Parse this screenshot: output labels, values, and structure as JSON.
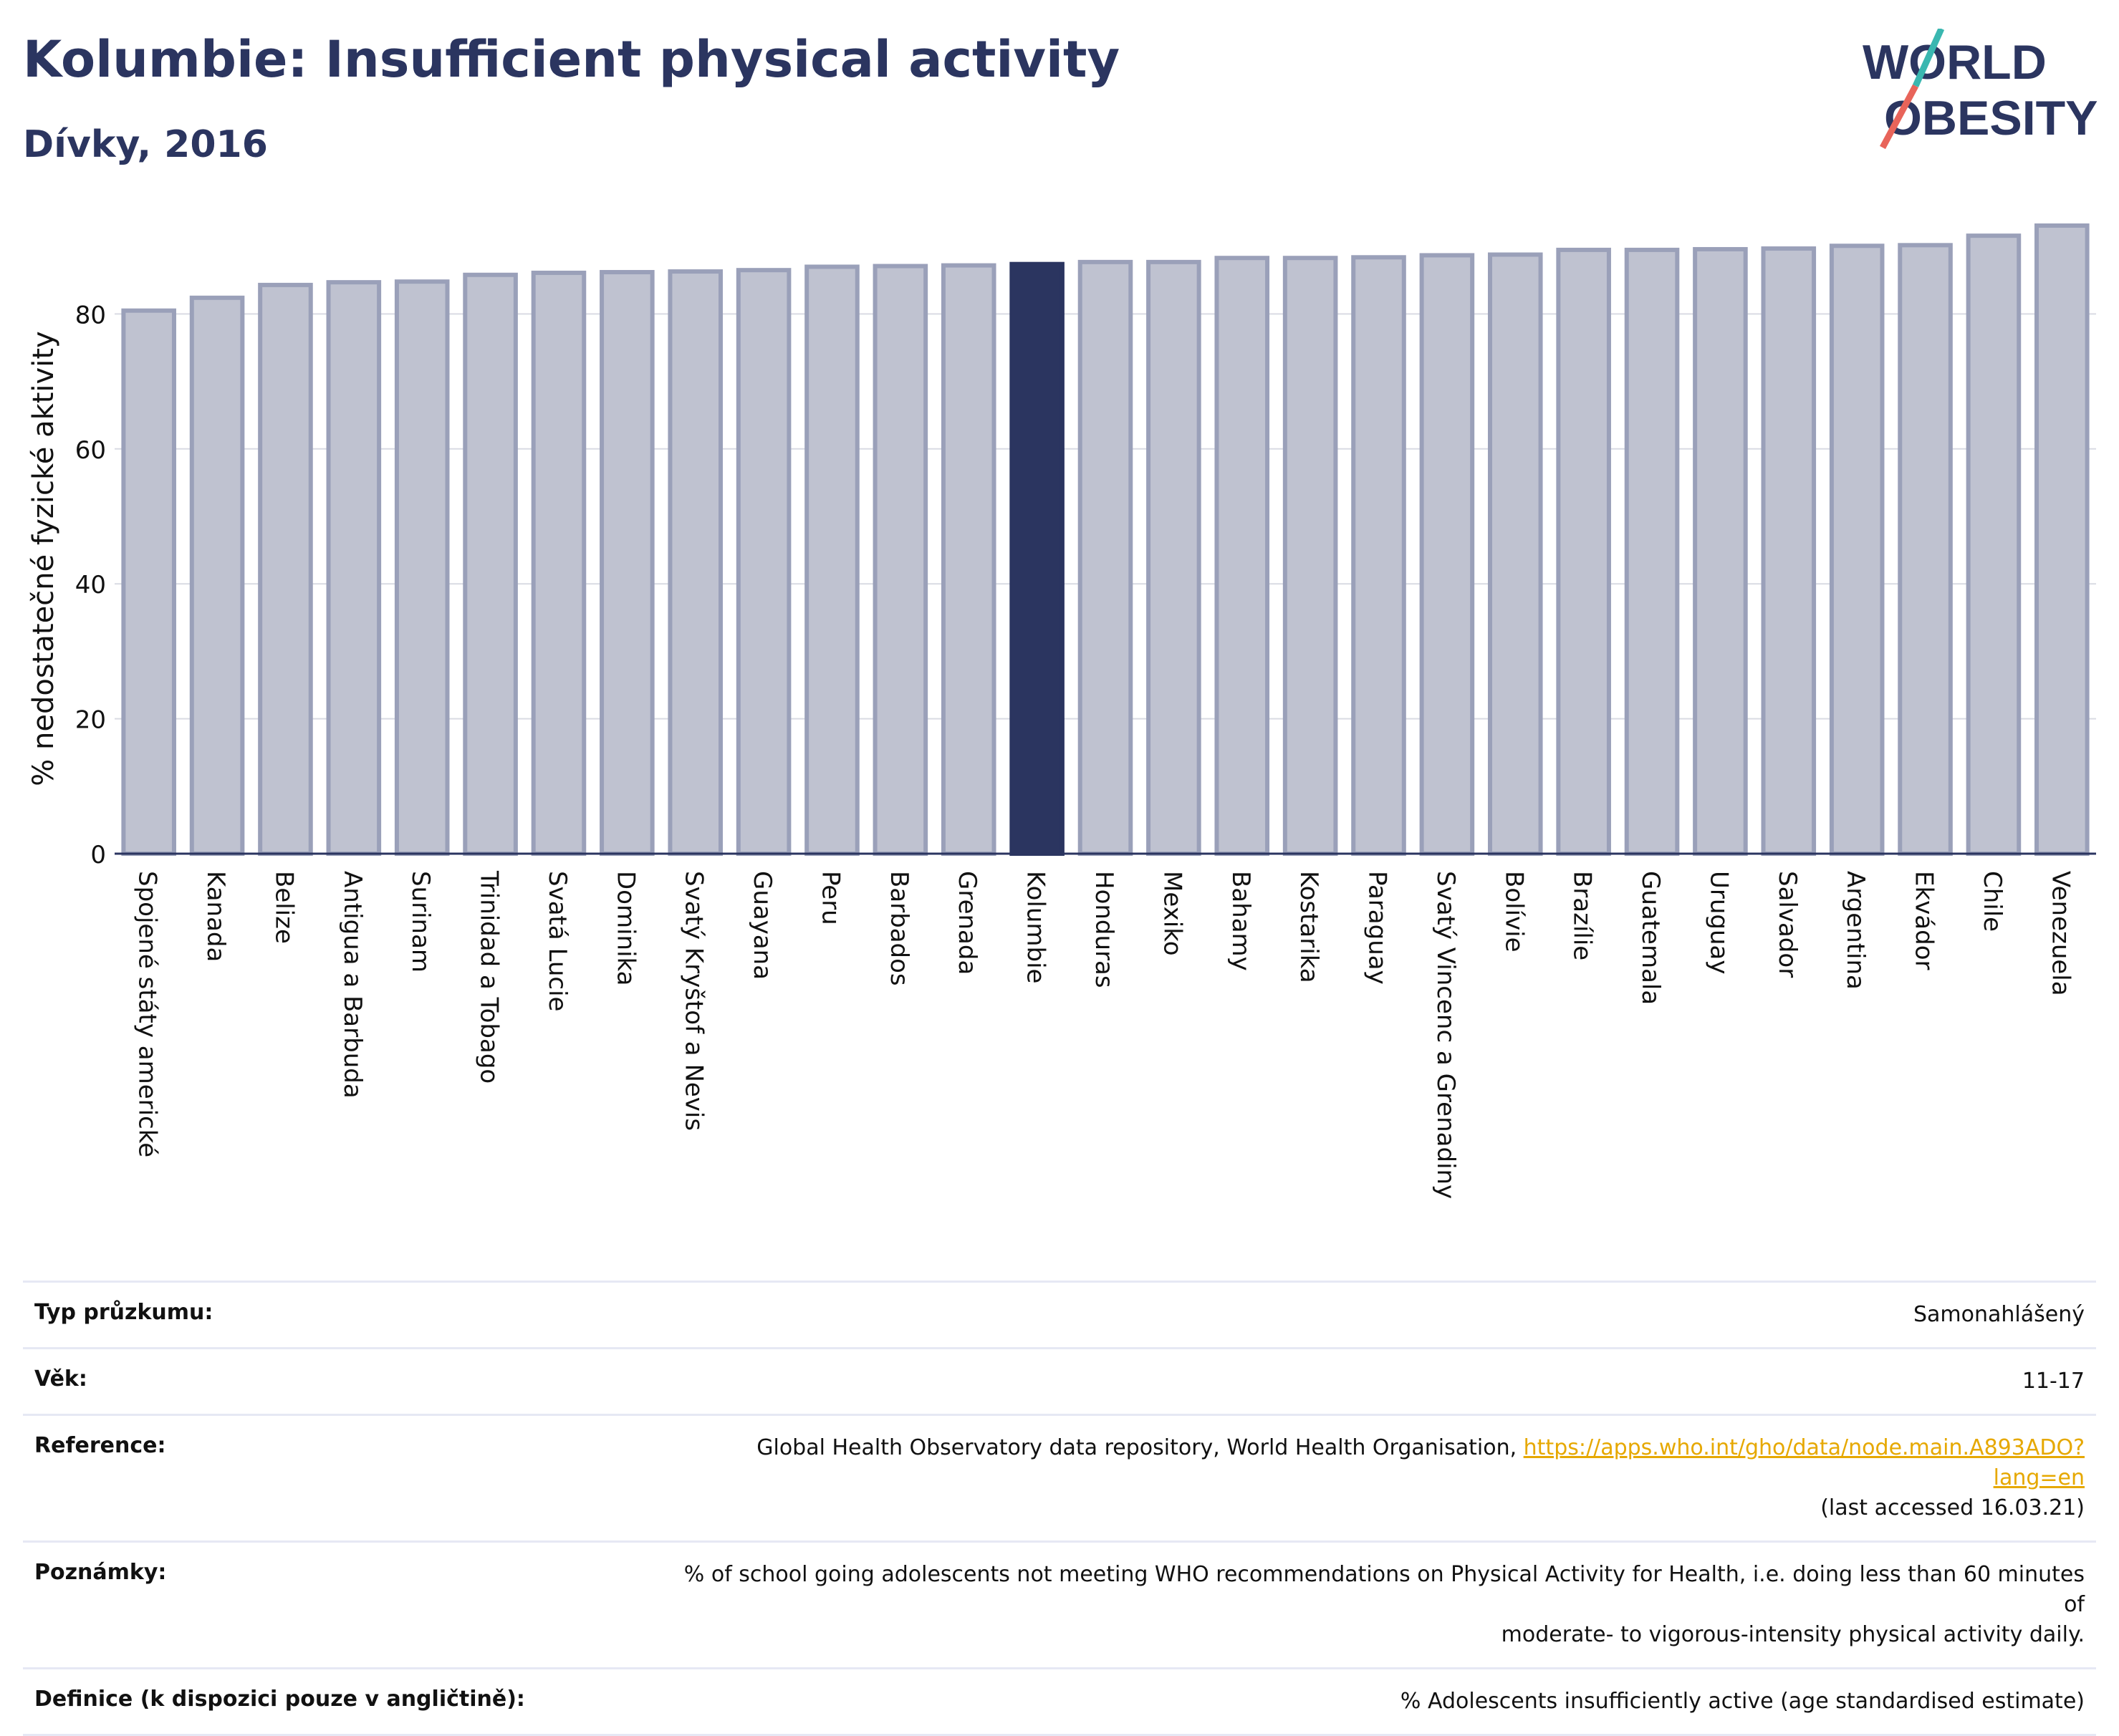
{
  "header": {
    "title": "Kolumbie: Insufficient physical activity",
    "subtitle": "Dívky, 2016",
    "logo_text": "WORLD OBESITY"
  },
  "colors": {
    "title": "#2b3560",
    "bar": "#bfc2d0",
    "bar_stroke": "#9aa0b9",
    "highlight": "#2b3560",
    "link": "#e6a800",
    "logo_teal": "#3ab7b0",
    "logo_red": "#e8645a"
  },
  "chart_data": {
    "type": "bar",
    "ylabel": "% nedostatečné fyzické aktivity",
    "xlabel": "",
    "ylim": [
      0,
      100
    ],
    "yticks": [
      0,
      20,
      40,
      60,
      80
    ],
    "grid": true,
    "highlight": "Kolumbie",
    "categories": [
      "Spojené státy americké",
      "Kanada",
      "Belize",
      "Antigua a Barbuda",
      "Surinam",
      "Trinidad a Tobago",
      "Svatá Lucie",
      "Dominika",
      "Svatý Kryštof a Nevis",
      "Guayana",
      "Peru",
      "Barbados",
      "Grenada",
      "Kolumbie",
      "Honduras",
      "Mexiko",
      "Bahamy",
      "Kostarika",
      "Paraguay",
      "Svatý Vincenc a Grenadiny",
      "Bolívie",
      "Brazílie",
      "Guatemala",
      "Uruguay",
      "Salvador",
      "Argentina",
      "Ekvádor",
      "Chile",
      "Venezuela"
    ],
    "values": [
      80.5,
      82.4,
      84.3,
      84.7,
      84.8,
      85.8,
      86.1,
      86.2,
      86.3,
      86.5,
      87.0,
      87.1,
      87.2,
      87.4,
      87.7,
      87.7,
      88.3,
      88.3,
      88.4,
      88.7,
      88.8,
      89.5,
      89.5,
      89.6,
      89.7,
      90.1,
      90.2,
      91.6,
      93.1
    ]
  },
  "meta": {
    "rows": [
      {
        "label": "Typ průzkumu:",
        "value": "Samonahlášený"
      },
      {
        "label": "Věk:",
        "value": "11-17"
      },
      {
        "label": "Reference:",
        "value": "Global Health Observatory data repository, World Health Organisation, ",
        "link": "https://apps.who.int/gho/data/node.main.A893ADO?lang=en",
        "value2": "(last accessed 16.03.21)"
      },
      {
        "label": "Poznámky:",
        "value": "% of school going adolescents not meeting WHO recommendations on Physical Activity for Health, i.e. doing less than 60 minutes of",
        "value2": "moderate- to vigorous-intensity physical activity daily."
      },
      {
        "label": "Definice (k dispozici pouze v angličtině):",
        "value": "% Adolescents insufficiently active (age standardised estimate)"
      }
    ]
  }
}
